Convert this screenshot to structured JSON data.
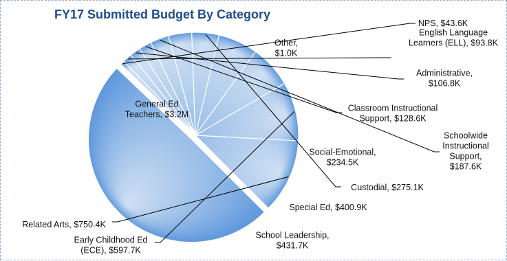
{
  "chart_data": {
    "type": "pie",
    "title": "FY17 Submitted Budget By Category",
    "unit": "$",
    "slices": [
      {
        "label_lines": [
          "General Ed",
          "Teachers, $3.2M"
        ],
        "value": 3200000
      },
      {
        "label_lines": [
          "Other,",
          "$1.0K"
        ],
        "value": 1000
      },
      {
        "label_lines": [
          "NPS,  $43.6K"
        ],
        "value": 43600
      },
      {
        "label_lines": [
          "English Language",
          "Learners (ELL),  $93.8K"
        ],
        "value": 93800
      },
      {
        "label_lines": [
          "Administrative,",
          "$106.8K"
        ],
        "value": 106800
      },
      {
        "label_lines": [
          "Classroom Instructional",
          "Support,  $128.6K"
        ],
        "value": 128600
      },
      {
        "label_lines": [
          "Schoolwide",
          "Instructional",
          "Support,",
          "$187.6K"
        ],
        "value": 187600
      },
      {
        "label_lines": [
          "Social-Emotional,",
          "$234.5K"
        ],
        "value": 234500
      },
      {
        "label_lines": [
          "Custodial,  $275.1K"
        ],
        "value": 275100
      },
      {
        "label_lines": [
          "Special Ed,  $400.9K"
        ],
        "value": 400900
      },
      {
        "label_lines": [
          "School Leadership,",
          "$431.7K"
        ],
        "value": 431700
      },
      {
        "label_lines": [
          "Early Childhood Ed",
          "(ECE),  $597.7K"
        ],
        "value": 597700
      },
      {
        "label_lines": [
          "Related Arts,  $750.4K"
        ],
        "value": 750400
      }
    ],
    "colors": {
      "light": "#cfe0f3",
      "dark": "#5d97dc",
      "title": "#1f4e8c",
      "frame": "#8fa9c8"
    },
    "legend": "none",
    "grid": false
  }
}
